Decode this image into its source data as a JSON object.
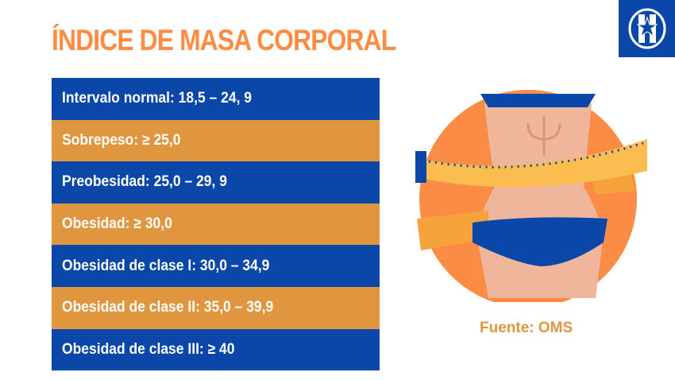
{
  "title": "ÍNDICE DE MASA CORPORAL",
  "colors": {
    "title": "#ff8c42",
    "blue": "#0a47a8",
    "orange": "#e0963f"
  },
  "rows": [
    {
      "label": "Intervalo normal: 18,5 – 24, 9",
      "color": "blue"
    },
    {
      "label": "Sobrepeso: ≥ 25,0",
      "color": "orange"
    },
    {
      "label": "Preobesidad: 25,0 – 29, 9",
      "color": "blue"
    },
    {
      "label": "Obesidad: ≥ 30,0",
      "color": "orange"
    },
    {
      "label": "Obesidad de clase I: 30,0 – 34,9",
      "color": "blue"
    },
    {
      "label": "Obesidad de clase II: 35,0 – 39,9",
      "color": "orange"
    },
    {
      "label": "Obesidad de clase III: ≥ 40",
      "color": "blue"
    }
  ],
  "source": "Fuente: OMS",
  "logo_icon": "shield-star-logo-icon",
  "illustration_icon": "waist-measuring-tape-icon"
}
